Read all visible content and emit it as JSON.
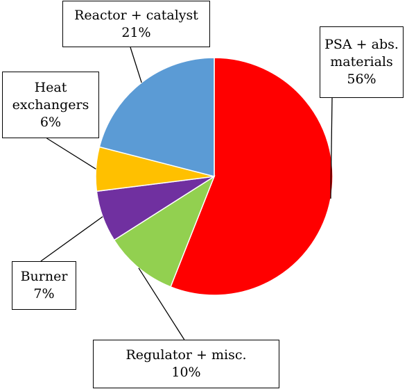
{
  "chart_data": {
    "type": "pie",
    "title": "",
    "start_angle_deg": 0,
    "direction": "clockwise",
    "slices": [
      {
        "label_lines": [
          "PSA + abs.",
          "materials"
        ],
        "value": 56,
        "value_label": "56%",
        "color": "#ff0000"
      },
      {
        "label_lines": [
          "Regulator + misc."
        ],
        "value": 10,
        "value_label": "10%",
        "color": "#92d050"
      },
      {
        "label_lines": [
          "Burner"
        ],
        "value": 7,
        "value_label": "7%",
        "color": "#7030a0"
      },
      {
        "label_lines": [
          "Heat",
          "exchangers"
        ],
        "value": 6,
        "value_label": "6%",
        "color": "#ffc000"
      },
      {
        "label_lines": [
          "Reactor + catalyst"
        ],
        "value": 21,
        "value_label": "21%",
        "color": "#5b9bd5"
      }
    ]
  }
}
